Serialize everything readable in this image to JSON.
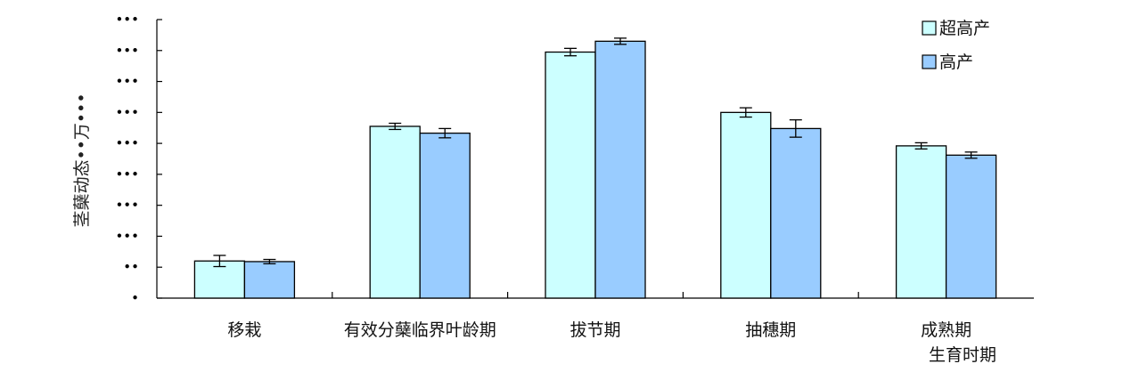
{
  "chart_data": {
    "type": "bar",
    "ylabel": "茎蘖动态••万•••",
    "xlabel": "生育时期",
    "ytick_labels": [
      "•",
      "••",
      "•••",
      "•••",
      "•••",
      "•••",
      "•••",
      "•••",
      "•••",
      "•••"
    ],
    "ylim": [
      0,
      9
    ],
    "categories": [
      "移栽",
      "有效分蘖临界叶龄期",
      "拔节期",
      "抽穗期",
      "成熟期"
    ],
    "series": [
      {
        "name": "超高产",
        "color": "#ccffff",
        "values": [
          1.2,
          5.55,
          7.95,
          6.0,
          4.92
        ],
        "errors": [
          0.18,
          0.1,
          0.12,
          0.15,
          0.1
        ]
      },
      {
        "name": "高产",
        "color": "#99ccff",
        "values": [
          1.18,
          5.33,
          8.3,
          5.48,
          4.62
        ],
        "errors": [
          0.07,
          0.15,
          0.1,
          0.28,
          0.1
        ]
      }
    ],
    "legend_position": "top-right",
    "grid": false
  }
}
